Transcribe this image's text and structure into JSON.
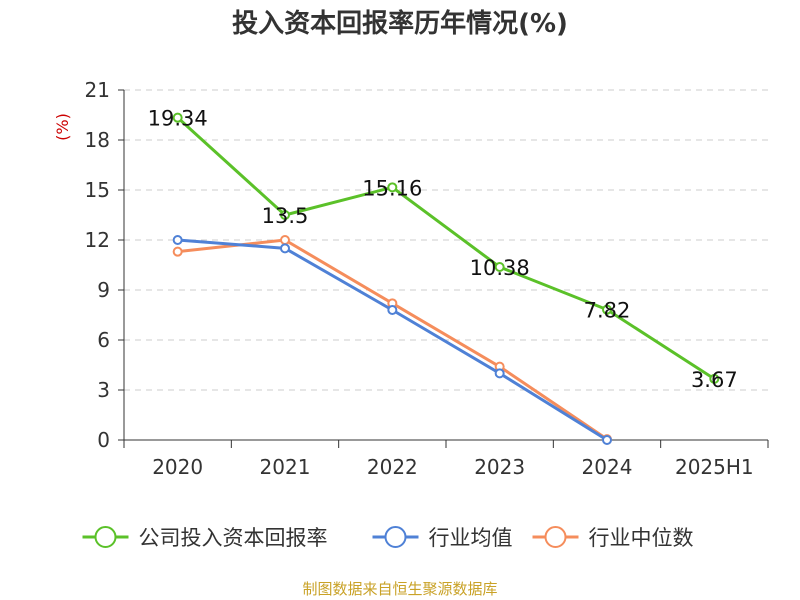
{
  "chart_data": {
    "type": "line",
    "title": "投入资本回报率历年情况(%)",
    "ylabel": "(%)",
    "xlabel": "",
    "categories": [
      "2020",
      "2021",
      "2022",
      "2023",
      "2024",
      "2025H1"
    ],
    "ylim": [
      0,
      21
    ],
    "yticks": [
      0,
      3,
      6,
      9,
      12,
      15,
      18,
      21
    ],
    "grid": true,
    "legend_position": "bottom",
    "series": [
      {
        "name": "公司投入资本回报率",
        "color": "#5bc129",
        "values": [
          19.34,
          13.5,
          15.16,
          10.38,
          7.82,
          3.67
        ],
        "labels": [
          "19.34",
          "13.5",
          "15.16",
          "10.38",
          "7.82",
          "3.67"
        ]
      },
      {
        "name": "行业均值",
        "color": "#4f81d6",
        "values": [
          12.0,
          11.5,
          7.8,
          4.0,
          0.0,
          null
        ],
        "labels": []
      },
      {
        "name": "行业中位数",
        "color": "#f58d5c",
        "values": [
          11.3,
          12.0,
          8.2,
          4.4,
          0.05,
          null
        ],
        "labels": []
      }
    ]
  },
  "source": "制图数据来自恒生聚源数据库"
}
